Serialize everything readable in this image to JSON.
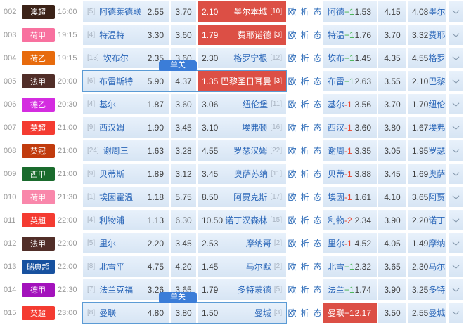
{
  "colors": {
    "accent_red": "#dc4f45",
    "tag_blue": "#3b7dd8",
    "link_blue": "#2f6db9",
    "team_blue": "#2a66b8",
    "plus_green": "#3cb049",
    "minus_red": "#e8442e",
    "selected_border": "#5b9bd5",
    "cell_bg_top": "#e8f1fb",
    "cell_bg_bottom": "#d7e5f4",
    "rank_gray": "#a9b4c2",
    "odds_dark": "#404040",
    "chevron_gray": "#8296aa"
  },
  "table": {
    "tag_label": "单关",
    "links": [
      "欧",
      "析",
      "态"
    ],
    "icons": {
      "expand": "chevron-down"
    },
    "rows": [
      {
        "num": "002",
        "league": "澳超",
        "league_color": "#3b2217",
        "time": "16:00",
        "home_rank": "[5]",
        "home": "阿德莱德联",
        "odd_home": "2.55",
        "odd_draw": "3.70",
        "odd_away": "2.10",
        "away": "墨尔本城",
        "away_rank": "[10]",
        "away_red": true,
        "selected": false,
        "hc_red": false,
        "hc_home": "阿德",
        "hc_val": "+1",
        "hc1": "1.53",
        "hc2": "4.15",
        "hc3": "4.08",
        "hc_away": "墨尔"
      },
      {
        "num": "003",
        "league": "荷甲",
        "league_color": "#f8719f",
        "time": "19:15",
        "home_rank": "[4]",
        "home": "特温特",
        "odd_home": "3.30",
        "odd_draw": "3.60",
        "odd_away": "1.79",
        "away": "费耶诺德",
        "away_rank": "[3]",
        "away_red": true,
        "selected": false,
        "hc_red": false,
        "hc_home": "特温",
        "hc_val": "+1",
        "hc1": "1.76",
        "hc2": "3.70",
        "hc3": "3.32",
        "hc_away": "费耶"
      },
      {
        "num": "004",
        "league": "荷乙",
        "league_color": "#e76b0d",
        "time": "19:15",
        "home_rank": "[13]",
        "home": "坎布尔",
        "odd_home": "2.35",
        "odd_draw": "3.60",
        "odd_away": "2.30",
        "away": "格罗宁根",
        "away_rank": "[12]",
        "away_red": false,
        "selected": false,
        "hc_red": false,
        "hc_home": "坎布",
        "hc_val": "+1",
        "hc1": "1.45",
        "hc2": "4.35",
        "hc3": "4.55",
        "hc_away": "格罗"
      },
      {
        "num": "005",
        "league": "法甲",
        "league_color": "#512e28",
        "time": "20:00",
        "home_rank": "[6]",
        "home": "布雷斯特",
        "odd_home": "5.90",
        "odd_draw": "4.37",
        "odd_away": "1.35",
        "away": "巴黎圣日耳曼",
        "away_rank": "[3]",
        "away_red": true,
        "selected": true,
        "hc_red": false,
        "hc_home": "布雷",
        "hc_val": "+1",
        "hc1": "2.63",
        "hc2": "3.55",
        "hc3": "2.10",
        "hc_away": "巴黎"
      },
      {
        "num": "006",
        "league": "德乙",
        "league_color": "#d42ce0",
        "time": "20:30",
        "home_rank": "[4]",
        "home": "基尔",
        "odd_home": "1.87",
        "odd_draw": "3.60",
        "odd_away": "3.06",
        "away": "纽伦堡",
        "away_rank": "[11]",
        "away_red": false,
        "selected": false,
        "hc_red": false,
        "hc_home": "基尔",
        "hc_val": "-1",
        "hc1": "3.56",
        "hc2": "3.70",
        "hc3": "1.70",
        "hc_away": "纽伦"
      },
      {
        "num": "007",
        "league": "英超",
        "league_color": "#f43b31",
        "time": "21:00",
        "home_rank": "[9]",
        "home": "西汉姆",
        "odd_home": "1.90",
        "odd_draw": "3.45",
        "odd_away": "3.10",
        "away": "埃弗顿",
        "away_rank": "[16]",
        "away_red": false,
        "selected": false,
        "hc_red": false,
        "hc_home": "西汉",
        "hc_val": "-1",
        "hc1": "3.60",
        "hc2": "3.80",
        "hc3": "1.67",
        "hc_away": "埃弗"
      },
      {
        "num": "008",
        "league": "英冠",
        "league_color": "#c13b0d",
        "time": "21:00",
        "home_rank": "[24]",
        "home": "谢周三",
        "odd_home": "1.63",
        "odd_draw": "3.28",
        "odd_away": "4.55",
        "away": "罗瑟汉姆",
        "away_rank": "[22]",
        "away_red": false,
        "selected": false,
        "hc_red": false,
        "hc_home": "谢周",
        "hc_val": "-1",
        "hc1": "3.35",
        "hc2": "3.05",
        "hc3": "1.95",
        "hc_away": "罗瑟"
      },
      {
        "num": "009",
        "league": "西甲",
        "league_color": "#1a6b2d",
        "time": "21:00",
        "home_rank": "[9]",
        "home": "贝蒂斯",
        "odd_home": "1.89",
        "odd_draw": "3.12",
        "odd_away": "3.45",
        "away": "奥萨苏纳",
        "away_rank": "[11]",
        "away_red": false,
        "selected": false,
        "hc_red": false,
        "hc_home": "贝蒂",
        "hc_val": "-1",
        "hc1": "3.88",
        "hc2": "3.45",
        "hc3": "1.69",
        "hc_away": "奥萨"
      },
      {
        "num": "010",
        "league": "荷甲",
        "league_color": "#f987ab",
        "time": "21:30",
        "home_rank": "[1]",
        "home": "埃因霍温",
        "odd_home": "1.18",
        "odd_draw": "5.75",
        "odd_away": "8.50",
        "away": "阿贾克斯",
        "away_rank": "[17]",
        "away_red": false,
        "selected": false,
        "hc_red": false,
        "hc_home": "埃因",
        "hc_val": "-1",
        "hc1": "1.61",
        "hc2": "4.10",
        "hc3": "3.65",
        "hc_away": "阿贾"
      },
      {
        "num": "011",
        "league": "英超",
        "league_color": "#f43b31",
        "time": "22:00",
        "home_rank": "[4]",
        "home": "利物浦",
        "odd_home": "1.13",
        "odd_draw": "6.30",
        "odd_away": "10.50",
        "away": "诺丁汉森林",
        "away_rank": "[15]",
        "away_red": false,
        "selected": false,
        "hc_red": false,
        "hc_home": "利物",
        "hc_val": "-2",
        "hc1": "2.34",
        "hc2": "3.90",
        "hc3": "2.20",
        "hc_away": "诺丁"
      },
      {
        "num": "012",
        "league": "法甲",
        "league_color": "#512e28",
        "time": "22:00",
        "home_rank": "[5]",
        "home": "里尔",
        "odd_home": "2.20",
        "odd_draw": "3.45",
        "odd_away": "2.53",
        "away": "摩纳哥",
        "away_rank": "[2]",
        "away_red": false,
        "selected": false,
        "hc_red": false,
        "hc_home": "里尔",
        "hc_val": "-1",
        "hc1": "4.52",
        "hc2": "4.05",
        "hc3": "1.49",
        "hc_away": "摩纳"
      },
      {
        "num": "013",
        "league": "瑞典超",
        "league_color": "#17519f",
        "time": "22:00",
        "home_rank": "[8]",
        "home": "北雪平",
        "odd_home": "4.75",
        "odd_draw": "4.20",
        "odd_away": "1.45",
        "away": "马尔默",
        "away_rank": "[2]",
        "away_red": false,
        "selected": false,
        "hc_red": false,
        "hc_home": "北雪",
        "hc_val": "+1",
        "hc1": "2.32",
        "hc2": "3.65",
        "hc3": "2.30",
        "hc_away": "马尔"
      },
      {
        "num": "014",
        "league": "德甲",
        "league_color": "#a312bc",
        "time": "22:30",
        "home_rank": "[7]",
        "home": "法兰克福",
        "odd_home": "3.26",
        "odd_draw": "3.65",
        "odd_away": "1.79",
        "away": "多特蒙德",
        "away_rank": "[5]",
        "away_red": false,
        "selected": false,
        "hc_red": false,
        "hc_home": "法兰",
        "hc_val": "+1",
        "hc1": "1.74",
        "hc2": "3.90",
        "hc3": "3.25",
        "hc_away": "多特"
      },
      {
        "num": "015",
        "league": "英超",
        "league_color": "#f43b31",
        "time": "23:00",
        "home_rank": "[8]",
        "home": "曼联",
        "odd_home": "4.80",
        "odd_draw": "3.80",
        "odd_away": "1.50",
        "away": "曼城",
        "away_rank": "[3]",
        "away_red": false,
        "selected": true,
        "hc_red": true,
        "hc_home": "曼联",
        "hc_val": "+1",
        "hc1": "2.17",
        "hc2": "3.50",
        "hc3": "2.55",
        "hc_away": "曼城"
      }
    ]
  }
}
